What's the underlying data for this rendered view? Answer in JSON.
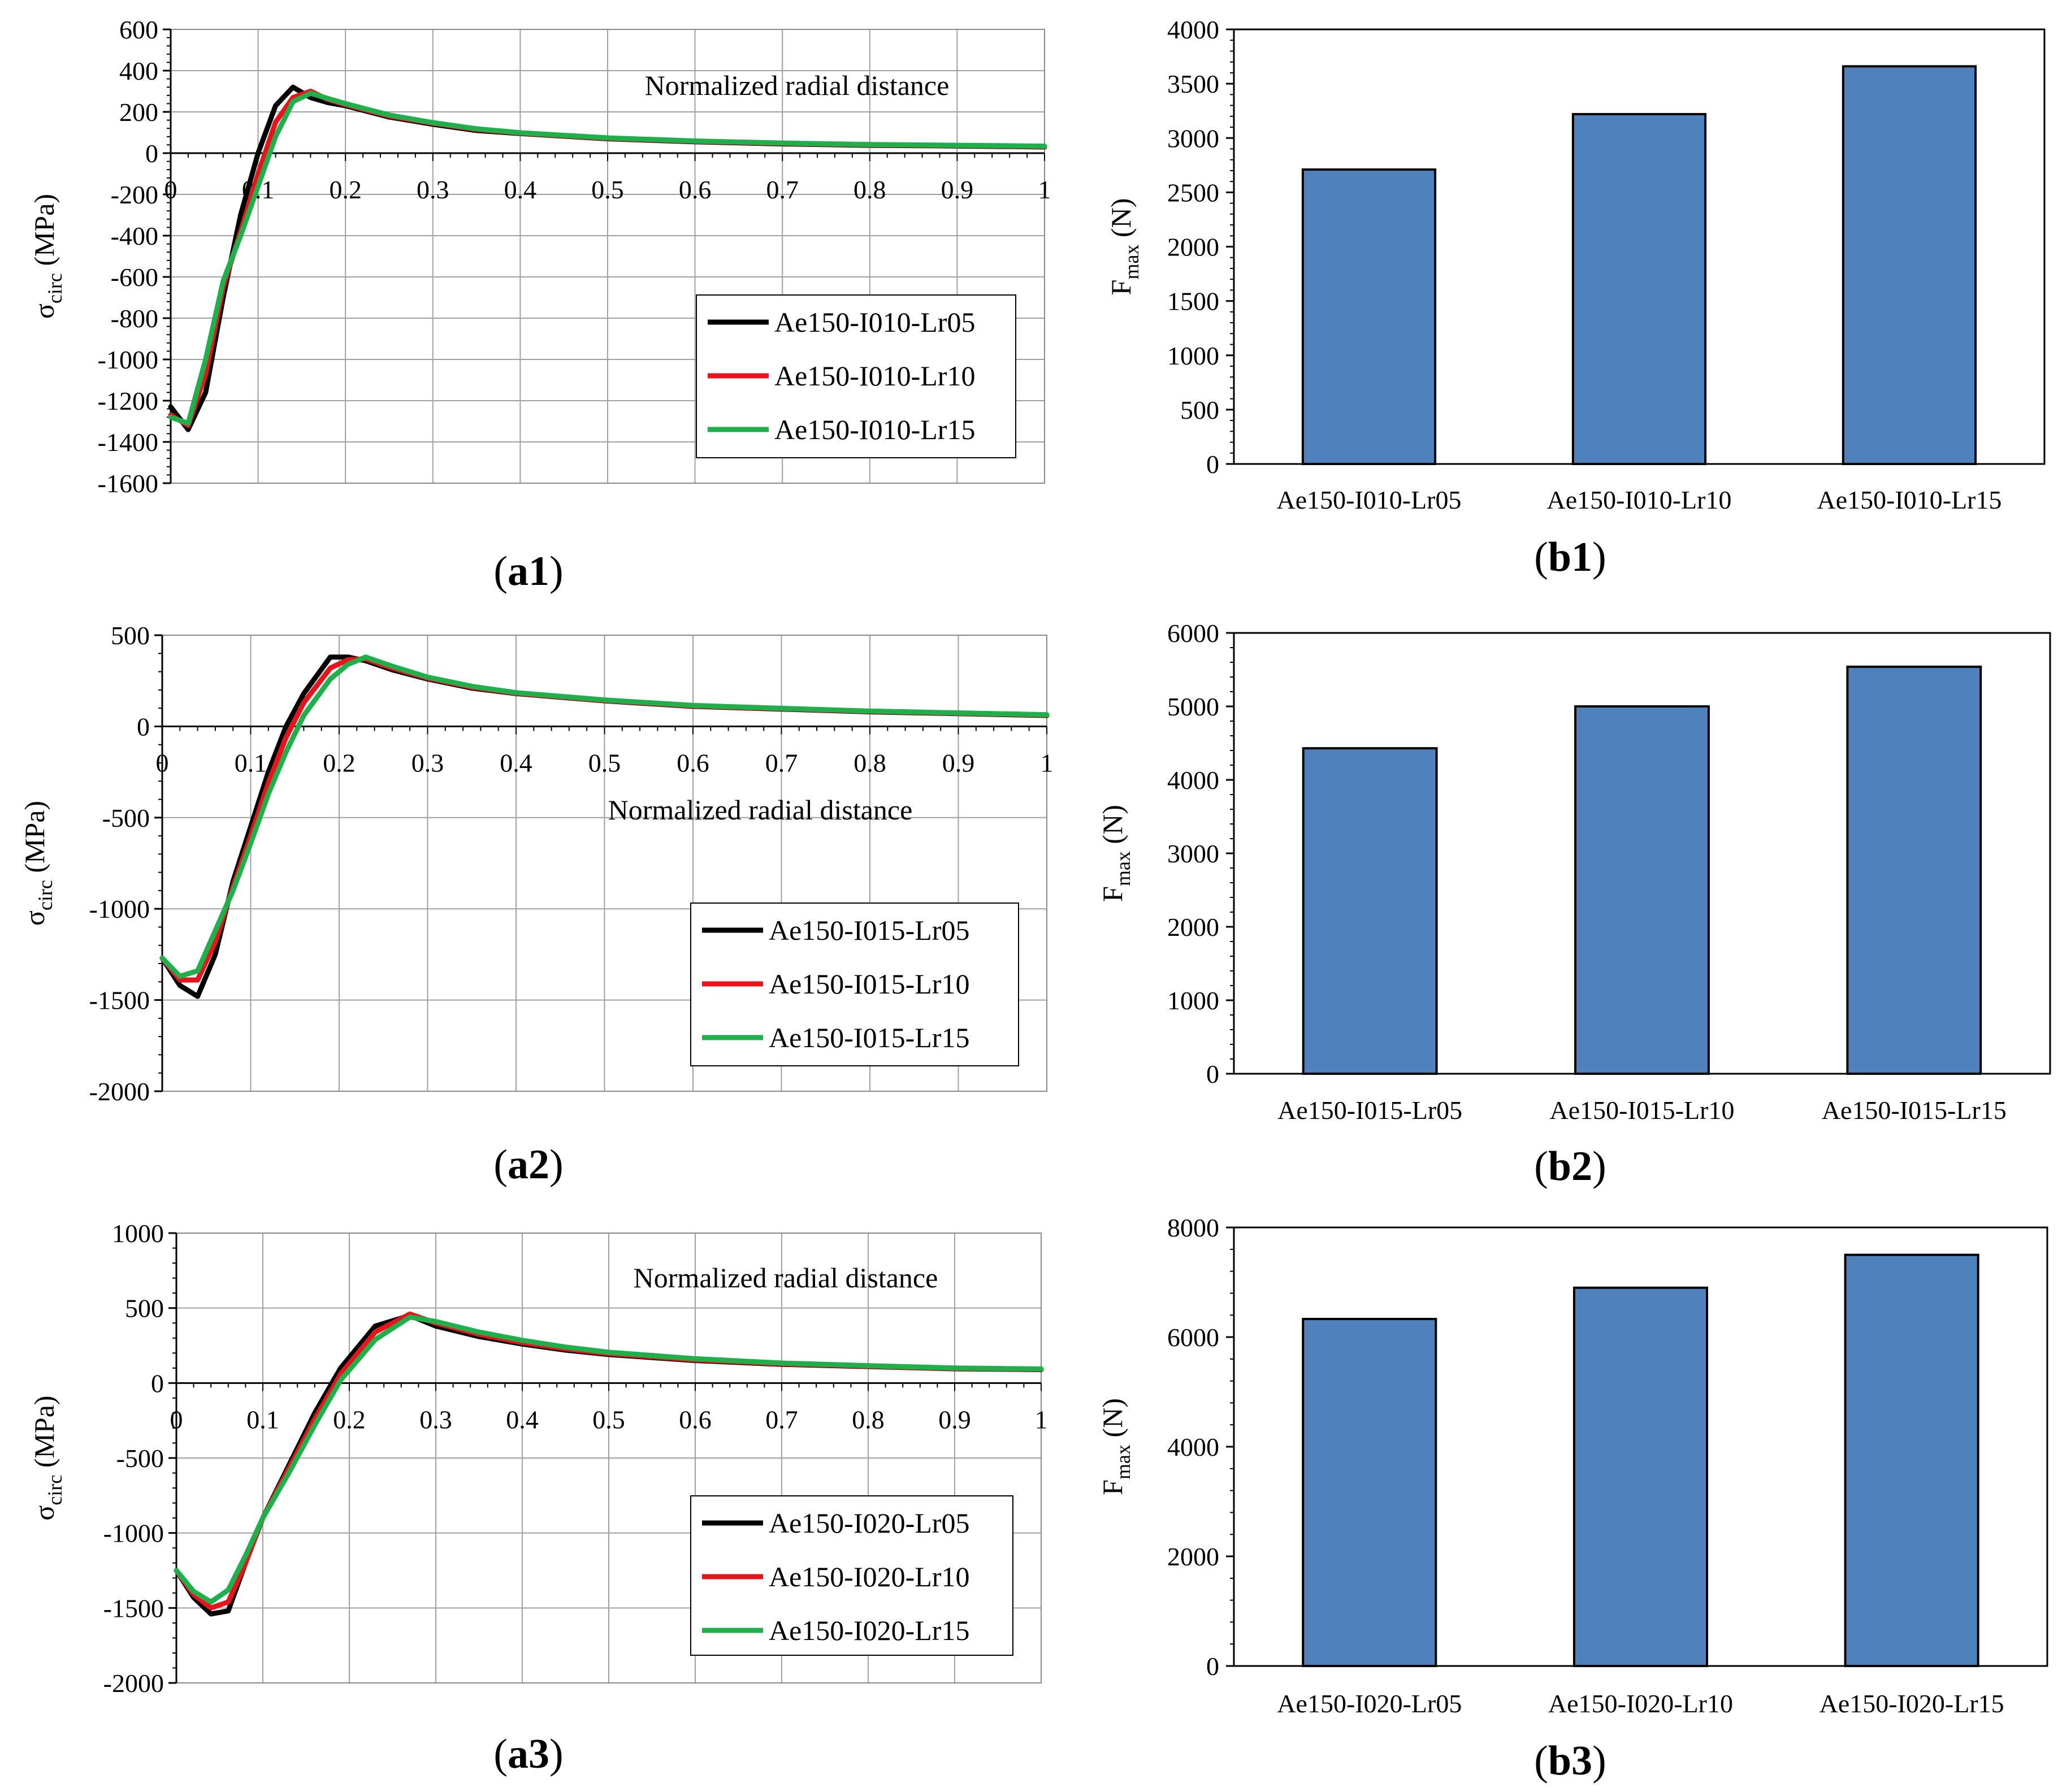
{
  "chart_data": [
    {
      "type": "line",
      "panel": "a1",
      "label_paren_open": "(",
      "label_core": "a1",
      "label_paren_close": ")",
      "annotation": "Normalized radial distance",
      "ylabel_main": "σ",
      "ylabel_sub": "circ",
      "ylabel_unit": " (MPa)",
      "ylim": [
        -1600,
        600
      ],
      "xlim": [
        0,
        1
      ],
      "yticks": [
        "600",
        "400",
        "200",
        "0",
        "-200",
        "-400",
        "-600",
        "-800",
        "-1000",
        "-1200",
        "-1400",
        "-1600"
      ],
      "xticks": [
        "0",
        "0.1",
        "0.2",
        "0.3",
        "0.4",
        "0.5",
        "0.6",
        "0.7",
        "0.8",
        "0.9",
        "1"
      ],
      "grid": true,
      "legend_position": "bottom-right",
      "series": [
        {
          "name": "Ae150-I010-Lr05",
          "color": "#000000",
          "x": [
            0,
            0.02,
            0.04,
            0.06,
            0.08,
            0.1,
            0.12,
            0.14,
            0.16,
            0.18,
            0.2,
            0.25,
            0.3,
            0.35,
            0.4,
            0.5,
            0.6,
            0.7,
            0.8,
            0.9,
            1.0
          ],
          "y": [
            -1230,
            -1340,
            -1160,
            -700,
            -300,
            0,
            230,
            320,
            270,
            245,
            230,
            175,
            140,
            110,
            95,
            70,
            55,
            45,
            38,
            35,
            30
          ]
        },
        {
          "name": "Ae150-I010-Lr10",
          "color": "#e8141b",
          "x": [
            0,
            0.02,
            0.04,
            0.06,
            0.08,
            0.1,
            0.12,
            0.14,
            0.16,
            0.18,
            0.2,
            0.25,
            0.3,
            0.35,
            0.4,
            0.5,
            0.6,
            0.7,
            0.8,
            0.9,
            1.0
          ],
          "y": [
            -1270,
            -1320,
            -1070,
            -650,
            -380,
            -100,
            150,
            270,
            300,
            260,
            235,
            180,
            145,
            115,
            97,
            72,
            57,
            47,
            40,
            37,
            32
          ]
        },
        {
          "name": "Ae150-I010-Lr15",
          "color": "#1fb04b",
          "x": [
            0,
            0.02,
            0.04,
            0.06,
            0.08,
            0.1,
            0.12,
            0.14,
            0.16,
            0.18,
            0.2,
            0.25,
            0.3,
            0.35,
            0.4,
            0.5,
            0.6,
            0.7,
            0.8,
            0.9,
            1.0
          ],
          "y": [
            -1280,
            -1310,
            -1000,
            -620,
            -400,
            -160,
            80,
            250,
            290,
            265,
            240,
            185,
            148,
            118,
            99,
            74,
            59,
            49,
            42,
            38,
            34
          ]
        }
      ]
    },
    {
      "type": "line",
      "panel": "a2",
      "label_paren_open": "(",
      "label_core": "a2",
      "label_paren_close": ")",
      "annotation": "Normalized radial distance",
      "ylabel_main": "σ",
      "ylabel_sub": "circ",
      "ylabel_unit": " (MPa)",
      "ylim": [
        -2000,
        500
      ],
      "xlim": [
        0,
        1
      ],
      "yticks": [
        "500",
        "0",
        "-500",
        "-1000",
        "-1500",
        "-2000"
      ],
      "xticks": [
        "0",
        "0.1",
        "0.2",
        "0.3",
        "0.4",
        "0.5",
        "0.6",
        "0.7",
        "0.8",
        "0.9",
        "1"
      ],
      "grid": true,
      "legend_position": "bottom-right",
      "series": [
        {
          "name": "Ae150-I015-Lr05",
          "color": "#000000",
          "x": [
            0,
            0.02,
            0.04,
            0.06,
            0.08,
            0.1,
            0.12,
            0.14,
            0.16,
            0.19,
            0.21,
            0.23,
            0.26,
            0.3,
            0.35,
            0.4,
            0.5,
            0.6,
            0.7,
            0.8,
            0.9,
            1.0
          ],
          "y": [
            -1270,
            -1420,
            -1480,
            -1250,
            -850,
            -550,
            -250,
            0,
            180,
            380,
            380,
            360,
            310,
            260,
            210,
            180,
            140,
            110,
            95,
            80,
            70,
            60
          ]
        },
        {
          "name": "Ae150-I015-Lr10",
          "color": "#e8141b",
          "x": [
            0,
            0.02,
            0.04,
            0.06,
            0.08,
            0.1,
            0.12,
            0.14,
            0.16,
            0.19,
            0.21,
            0.23,
            0.26,
            0.3,
            0.35,
            0.4,
            0.5,
            0.6,
            0.7,
            0.8,
            0.9,
            1.0
          ],
          "y": [
            -1270,
            -1390,
            -1390,
            -1180,
            -880,
            -600,
            -310,
            -60,
            130,
            320,
            365,
            370,
            320,
            265,
            215,
            182,
            142,
            112,
            97,
            82,
            72,
            62
          ]
        },
        {
          "name": "Ae150-I015-Lr15",
          "color": "#1fb04b",
          "x": [
            0,
            0.02,
            0.04,
            0.06,
            0.08,
            0.1,
            0.12,
            0.14,
            0.16,
            0.19,
            0.21,
            0.23,
            0.26,
            0.3,
            0.35,
            0.4,
            0.5,
            0.6,
            0.7,
            0.8,
            0.9,
            1.0
          ],
          "y": [
            -1270,
            -1370,
            -1340,
            -1120,
            -900,
            -640,
            -370,
            -140,
            60,
            260,
            340,
            380,
            330,
            270,
            220,
            185,
            145,
            115,
            99,
            84,
            74,
            64
          ]
        }
      ]
    },
    {
      "type": "line",
      "panel": "a3",
      "label_paren_open": "(",
      "label_core": "a3",
      "label_paren_close": ")",
      "annotation": "Normalized radial distance",
      "ylabel_main": "σ",
      "ylabel_sub": "circ",
      "ylabel_unit": " (MPa)",
      "ylim": [
        -2000,
        1000
      ],
      "xlim": [
        0,
        1
      ],
      "yticks": [
        "1000",
        "500",
        "0",
        "-500",
        "-1000",
        "-1500",
        "-2000"
      ],
      "xticks": [
        "0",
        "0.1",
        "0.2",
        "0.3",
        "0.4",
        "0.5",
        "0.6",
        "0.7",
        "0.8",
        "0.9",
        "1"
      ],
      "grid": true,
      "legend_position": "bottom-right",
      "series": [
        {
          "name": "Ae150-I020-Lr05",
          "color": "#000000",
          "x": [
            0,
            0.02,
            0.04,
            0.06,
            0.08,
            0.1,
            0.13,
            0.16,
            0.19,
            0.23,
            0.27,
            0.3,
            0.35,
            0.4,
            0.45,
            0.5,
            0.6,
            0.7,
            0.8,
            0.9,
            1.0
          ],
          "y": [
            -1250,
            -1430,
            -1540,
            -1520,
            -1200,
            -900,
            -550,
            -200,
            100,
            380,
            450,
            380,
            310,
            260,
            220,
            190,
            150,
            125,
            110,
            95,
            90
          ]
        },
        {
          "name": "Ae150-I020-Lr10",
          "color": "#e8141b",
          "x": [
            0,
            0.02,
            0.04,
            0.06,
            0.08,
            0.1,
            0.13,
            0.16,
            0.19,
            0.23,
            0.27,
            0.3,
            0.35,
            0.4,
            0.45,
            0.5,
            0.6,
            0.7,
            0.8,
            0.9,
            1.0
          ],
          "y": [
            -1250,
            -1410,
            -1500,
            -1460,
            -1200,
            -900,
            -570,
            -240,
            60,
            340,
            460,
            400,
            325,
            270,
            228,
            196,
            155,
            128,
            112,
            97,
            92
          ]
        },
        {
          "name": "Ae150-I020-Lr15",
          "color": "#1fb04b",
          "x": [
            0,
            0.02,
            0.04,
            0.06,
            0.08,
            0.1,
            0.13,
            0.16,
            0.19,
            0.23,
            0.27,
            0.3,
            0.35,
            0.4,
            0.45,
            0.5,
            0.6,
            0.7,
            0.8,
            0.9,
            1.0
          ],
          "y": [
            -1250,
            -1390,
            -1460,
            -1380,
            -1150,
            -900,
            -600,
            -280,
            20,
            290,
            440,
            410,
            340,
            285,
            240,
            205,
            162,
            133,
            116,
            100,
            94
          ]
        }
      ]
    },
    {
      "type": "bar",
      "panel": "b1",
      "label_paren_open": "(",
      "label_core": "b1",
      "label_paren_close": ")",
      "ylabel_main": "F",
      "ylabel_sub": "max",
      "ylabel_unit": " (N)",
      "ylim": [
        0,
        4000
      ],
      "yticks": [
        "4000",
        "3500",
        "3000",
        "2500",
        "2000",
        "1500",
        "1000",
        "500",
        "0"
      ],
      "categories": [
        "Ae150-I010-Lr05",
        "Ae150-I010-Lr10",
        "Ae150-I010-Lr15"
      ],
      "values": [
        2710,
        3220,
        3660
      ],
      "bar_color": "#4f81bd"
    },
    {
      "type": "bar",
      "panel": "b2",
      "label_paren_open": "(",
      "label_core": "b2",
      "label_paren_close": ")",
      "ylabel_main": "F",
      "ylabel_sub": "max",
      "ylabel_unit": " (N)",
      "ylim": [
        0,
        6000
      ],
      "yticks": [
        "6000",
        "5000",
        "4000",
        "3000",
        "2000",
        "1000",
        "0"
      ],
      "categories": [
        "Ae150-I015-Lr05",
        "Ae150-I015-Lr10",
        "Ae150-I015-Lr15"
      ],
      "values": [
        4430,
        5000,
        5540
      ],
      "bar_color": "#4f81bd"
    },
    {
      "type": "bar",
      "panel": "b3",
      "label_paren_open": "(",
      "label_core": "b3",
      "label_paren_close": ")",
      "ylabel_main": "F",
      "ylabel_sub": "max",
      "ylabel_unit": " (N)",
      "ylim": [
        0,
        8000
      ],
      "yticks": [
        "8000",
        "6000",
        "4000",
        "2000",
        "0"
      ],
      "categories": [
        "Ae150-I020-Lr05",
        "Ae150-I020-Lr10",
        "Ae150-I020-Lr15"
      ],
      "values": [
        6330,
        6900,
        7500
      ],
      "bar_color": "#4f81bd"
    }
  ]
}
